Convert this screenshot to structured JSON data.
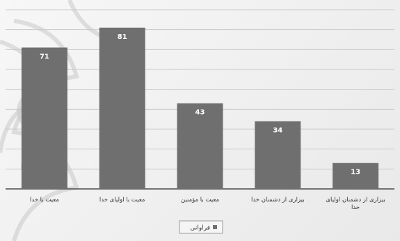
{
  "chart_data": {
    "type": "bar",
    "categories": [
      "معیت با خدا",
      "معیت با اولیای خدا",
      "معیت با مؤمنین",
      "بیزاری از دشمنان خدا",
      "بیزاری از دشمنان اولیای خدا"
    ],
    "series": [
      {
        "name": "فراوانی",
        "values": [
          71,
          81,
          43,
          34,
          13
        ]
      }
    ],
    "title": "",
    "xlabel": "",
    "ylabel": "",
    "ylim": [
      0,
      90
    ],
    "grid": true,
    "legend_position": "bottom",
    "colors": {
      "bar": "#6f6f6f",
      "grid": "#c9c9c9"
    }
  }
}
